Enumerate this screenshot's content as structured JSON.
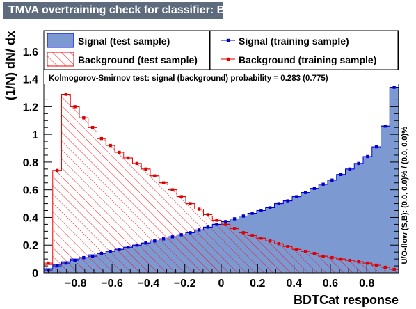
{
  "title": "TMVA overtraining check for classifier: BDTCat",
  "chart_data": {
    "type": "histogram",
    "xlabel": "BDTCat response",
    "ylabel": "(1/N) dN/ dx",
    "xlim": [
      -0.975,
      0.975
    ],
    "ylim": [
      0,
      1.75
    ],
    "x_ticks": [
      -0.8,
      -0.6,
      -0.4,
      -0.2,
      0,
      0.2,
      0.4,
      0.6,
      0.8
    ],
    "x_tick_labels": [
      "−0.8",
      "−0.6",
      "−0.4",
      "−0.2",
      "0",
      "0.2",
      "0.4",
      "0.6",
      "0.8"
    ],
    "y_ticks": [
      0,
      0.2,
      0.4,
      0.6,
      0.8,
      1,
      1.2,
      1.4,
      1.6
    ],
    "y_tick_labels": [
      "0",
      "0.2",
      "0.4",
      "0.6",
      "0.8",
      "1",
      "1.2",
      "1.4",
      "1.6"
    ],
    "bin_edges_range": [
      -0.975,
      0.975
    ],
    "n_bins": 40,
    "signal_test": [
      0.03,
      0.06,
      0.08,
      0.1,
      0.11,
      0.13,
      0.14,
      0.155,
      0.17,
      0.185,
      0.2,
      0.215,
      0.23,
      0.245,
      0.26,
      0.275,
      0.29,
      0.31,
      0.33,
      0.35,
      0.37,
      0.39,
      0.41,
      0.43,
      0.45,
      0.47,
      0.5,
      0.52,
      0.55,
      0.58,
      0.61,
      0.64,
      0.67,
      0.71,
      0.75,
      0.79,
      0.84,
      0.91,
      1.06,
      1.34
    ],
    "signal_train": [
      0.02,
      0.05,
      0.07,
      0.09,
      0.11,
      0.12,
      0.14,
      0.155,
      0.17,
      0.185,
      0.2,
      0.215,
      0.23,
      0.245,
      0.26,
      0.275,
      0.29,
      0.31,
      0.33,
      0.35,
      0.37,
      0.39,
      0.41,
      0.43,
      0.45,
      0.47,
      0.5,
      0.52,
      0.55,
      0.58,
      0.61,
      0.64,
      0.67,
      0.71,
      0.75,
      0.79,
      0.84,
      0.91,
      1.06,
      1.34
    ],
    "background_test": [
      0.06,
      0.74,
      1.29,
      1.2,
      1.12,
      1.05,
      0.97,
      0.92,
      0.87,
      0.83,
      0.79,
      0.75,
      0.7,
      0.65,
      0.6,
      0.55,
      0.5,
      0.46,
      0.41,
      0.38,
      0.35,
      0.32,
      0.29,
      0.27,
      0.25,
      0.23,
      0.21,
      0.19,
      0.17,
      0.155,
      0.14,
      0.12,
      0.11,
      0.1,
      0.09,
      0.08,
      0.07,
      0.055,
      0.04,
      0.025
    ],
    "background_train": [
      0.07,
      0.74,
      1.29,
      1.2,
      1.12,
      1.05,
      0.97,
      0.92,
      0.87,
      0.83,
      0.79,
      0.75,
      0.7,
      0.65,
      0.6,
      0.55,
      0.5,
      0.46,
      0.42,
      0.38,
      0.35,
      0.32,
      0.29,
      0.27,
      0.25,
      0.23,
      0.21,
      0.19,
      0.17,
      0.155,
      0.14,
      0.12,
      0.11,
      0.1,
      0.09,
      0.08,
      0.07,
      0.055,
      0.04,
      0.025
    ],
    "legend": {
      "signal_test": "Signal (test sample)",
      "background_test": "Background (test sample)",
      "signal_train": "Signal (training sample)",
      "background_train": "Background (training sample)"
    },
    "ks_text": "Kolmogorov-Smirnov test: signal (background) probability = 0.283 (0.775)",
    "overflow_text": "U/O-flow (S,B): (0.0, 0.0)% / (0.0, 0.0)%",
    "colors": {
      "signal_fill": "#7d99d1",
      "signal_line": "#0000ee",
      "background_line": "#ff0000",
      "signal_marker": "#0000cc",
      "background_marker": "#dd0000",
      "title_bg": "#5d6b7d"
    },
    "legend_placement": "top",
    "grid": false
  }
}
